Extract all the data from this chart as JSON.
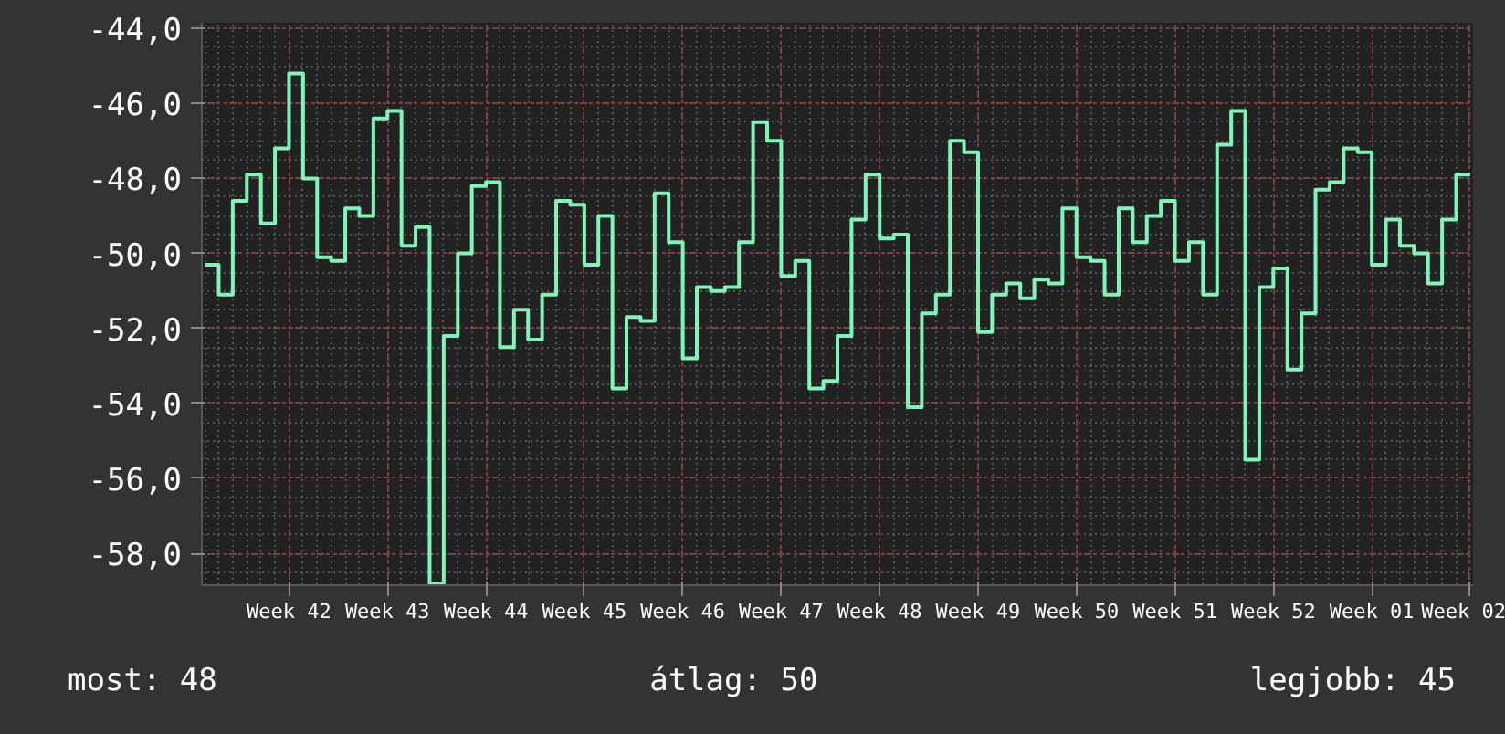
{
  "chart_data": {
    "type": "step",
    "categories": [
      null,
      null,
      null,
      null,
      null,
      null,
      "Week 42",
      null,
      null,
      null,
      null,
      null,
      null,
      "Week 43",
      null,
      null,
      null,
      null,
      null,
      null,
      "Week 44",
      null,
      null,
      null,
      null,
      null,
      null,
      "Week 45",
      null,
      null,
      null,
      null,
      null,
      null,
      "Week 46",
      null,
      null,
      null,
      null,
      null,
      null,
      "Week 47",
      null,
      null,
      null,
      null,
      null,
      null,
      "Week 48",
      null,
      null,
      null,
      null,
      null,
      null,
      "Week 49",
      null,
      null,
      null,
      null,
      null,
      null,
      "Week 50",
      null,
      null,
      null,
      null,
      null,
      null,
      "Week 51",
      null,
      null,
      null,
      null,
      null,
      null,
      "Week 52",
      null,
      null,
      null,
      null,
      null,
      null,
      "Week 01",
      null,
      null,
      null,
      null,
      null,
      null,
      "Week 02"
    ],
    "series": [
      {
        "color": "#80f5b8",
        "values": [
          -50.3,
          -51.1,
          -48.6,
          -47.9,
          -49.2,
          -47.2,
          -45.2,
          -48.0,
          -50.1,
          -50.2,
          -48.8,
          -49.0,
          -46.4,
          -46.2,
          -49.8,
          -49.3,
          -58.8,
          -52.2,
          -50.0,
          -48.2,
          -48.1,
          -52.5,
          -51.5,
          -52.3,
          -51.1,
          -48.6,
          -48.7,
          -50.3,
          -49.0,
          -53.6,
          -51.7,
          -51.8,
          -48.4,
          -49.7,
          -52.8,
          -50.9,
          -51.0,
          -50.9,
          -49.7,
          -46.5,
          -47.0,
          -50.6,
          -50.2,
          -53.6,
          -53.4,
          -52.2,
          -49.1,
          -47.9,
          -49.6,
          -49.5,
          -54.1,
          -51.6,
          -51.1,
          -47.0,
          -47.3,
          -52.1,
          -51.1,
          -50.8,
          -51.2,
          -50.7,
          -50.8,
          -48.8,
          -50.1,
          -50.2,
          -51.1,
          -48.8,
          -49.7,
          -49.0,
          -48.6,
          -50.2,
          -49.7,
          -51.1,
          -47.1,
          -46.2,
          -55.5,
          -50.9,
          -50.4,
          -53.1,
          -51.6,
          -48.3,
          -48.1,
          -47.2,
          -47.3,
          -50.3,
          -49.1,
          -49.8,
          -50.0,
          -50.8,
          -49.1,
          -47.9,
          -47.9
        ]
      }
    ],
    "ylim": [
      -58.85,
      -43.85
    ],
    "yticks": [
      {
        "value": -58,
        "label": "-58,0"
      },
      {
        "value": -56,
        "label": "-56,0"
      },
      {
        "value": -54,
        "label": "-54,0"
      },
      {
        "value": -52,
        "label": "-52,0"
      },
      {
        "value": -50,
        "label": "-50,0"
      },
      {
        "value": -48,
        "label": "-48,0"
      },
      {
        "value": -46,
        "label": "-46,0"
      },
      {
        "value": -44,
        "label": "-44,0"
      }
    ],
    "grid": true,
    "annotations": [
      "most: 48",
      "átlag: 50",
      "legjobb: 45"
    ]
  }
}
